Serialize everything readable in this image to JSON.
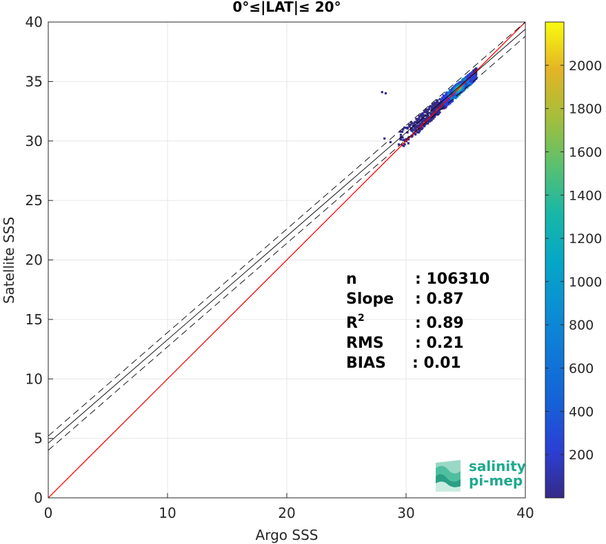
{
  "chart_data": {
    "type": "heatmap",
    "title": "0°≤|LAT|≤ 20°",
    "xlabel": "Argo SSS",
    "ylabel": "Satellite SSS",
    "xlim": [
      0,
      40
    ],
    "ylim": [
      0,
      40
    ],
    "x_ticks": [
      "0",
      "10",
      "20",
      "30",
      "40"
    ],
    "y_ticks": [
      "0",
      "5",
      "10",
      "15",
      "20",
      "25",
      "30",
      "35",
      "40"
    ],
    "grid": true,
    "lines": {
      "identity": {
        "slope": 1,
        "intercept": 0,
        "color": "#ff0000"
      },
      "fit": {
        "slope": 0.87,
        "intercept": 4.6,
        "color": "#000000"
      },
      "fit_bounds": [
        {
          "slope": 0.87,
          "intercept": 5.2
        },
        {
          "slope": 0.87,
          "intercept": 4.0
        }
      ]
    },
    "density_cluster": {
      "x_range": [
        27.8,
        35.8
      ],
      "y_range": [
        29.8,
        35.8
      ],
      "peak": [
        34.4,
        34.4
      ]
    },
    "colorbar": {
      "min": 0,
      "max": 2200,
      "ticks": [
        "200",
        "400",
        "600",
        "800",
        "1000",
        "1200",
        "1400",
        "1600",
        "1800",
        "2000"
      ],
      "colormap": "parula"
    },
    "stats": [
      {
        "name": "n",
        "value": ": 106310"
      },
      {
        "name": "Slope",
        "value": ": 0.87"
      },
      {
        "name": "R",
        "sup": "2",
        "value": ": 0.89"
      },
      {
        "name": "RMS",
        "value": ": 0.21"
      },
      {
        "name": "BIAS",
        "value": ": 0.01"
      }
    ]
  },
  "logo": {
    "line1": "salinity",
    "line2": "pi-mep"
  }
}
